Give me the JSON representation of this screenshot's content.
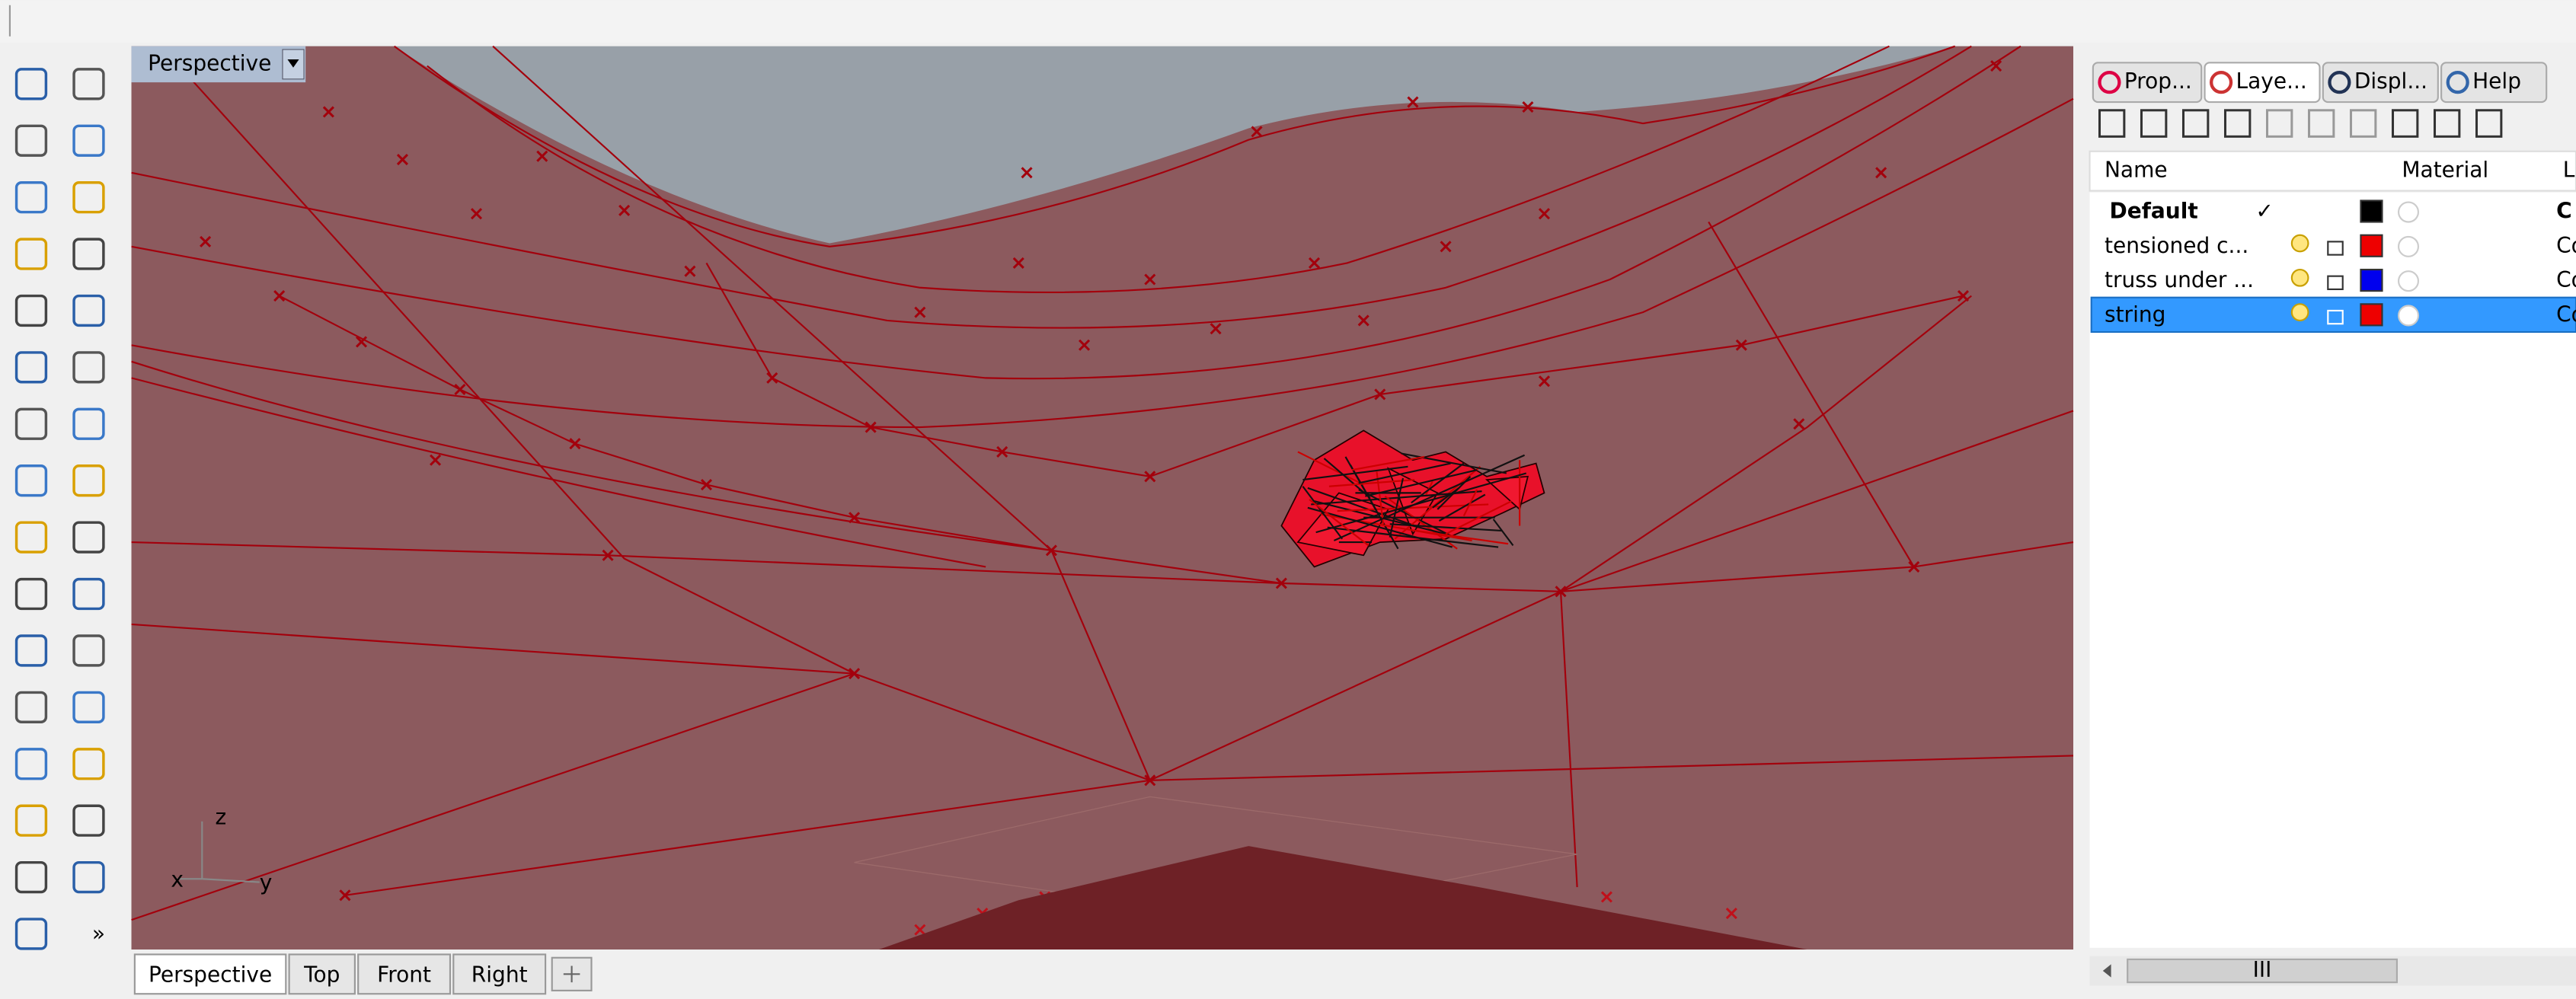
{
  "viewport": {
    "label": "Perspective",
    "axis": {
      "z": "z",
      "x": "x",
      "y": "y"
    }
  },
  "viewport_tabs": [
    "Perspective",
    "Top",
    "Front",
    "Right"
  ],
  "toolbar_more": "»",
  "panel": {
    "tabs": [
      "Prop...",
      "Laye...",
      "Displ...",
      "Help"
    ],
    "columns": {
      "name": "Name",
      "material": "Material",
      "linetype": "L"
    },
    "layers": [
      {
        "name": "Default",
        "check": "✓",
        "color": "#000000",
        "linetype": "C"
      },
      {
        "name": "tensioned c...",
        "color": "#ee0000",
        "linetype": "Co"
      },
      {
        "name": "truss under ...",
        "color": "#0000ee",
        "linetype": "Co"
      },
      {
        "name": "string",
        "color": "#ee0000",
        "linetype": "Co",
        "selected": true
      }
    ],
    "scroll": "III"
  }
}
